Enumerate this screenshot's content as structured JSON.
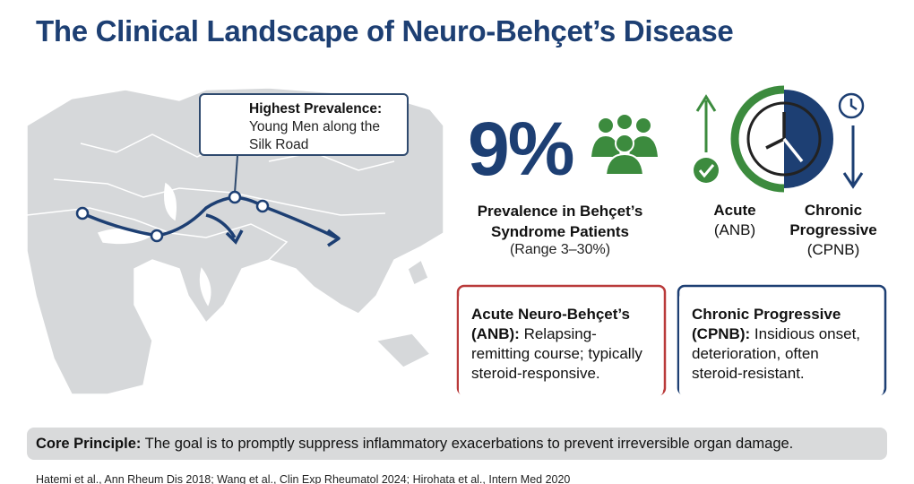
{
  "title": "The Clinical Landscape of Neuro-Behçet’s Disease",
  "map_callout": {
    "heading": "Highest Prevalence:",
    "text": "Young Men along the Silk Road"
  },
  "prevalence": {
    "stat": "9%",
    "label": "Prevalence in Behçet’s Syndrome Patients",
    "range": "(Range 3–30%)"
  },
  "course_types": [
    {
      "name": "Acute",
      "abbr": "(ANB)"
    },
    {
      "name": "Chronic Progressive",
      "abbr": "(CPNB)"
    }
  ],
  "boxes": [
    {
      "heading": "Acute Neuro-Behçet’s (ANB):",
      "text": "Relapsing-remitting course; typically steroid-responsive."
    },
    {
      "heading": "Chronic Progressive (CPNB):",
      "text": "Insidious onset, deterioration, often steroid-resistant."
    }
  ],
  "core_principle": {
    "label": "Core Principle:",
    "text": "The goal is to promptly suppress inflammatory exacerbations to prevent irreversible organ damage."
  },
  "references": "Hatemi et al., Ann Rheum Dis 2018; Wang et al., Clin Exp Rheumatol 2024; Hirohata et al., Intern Med 2020"
}
